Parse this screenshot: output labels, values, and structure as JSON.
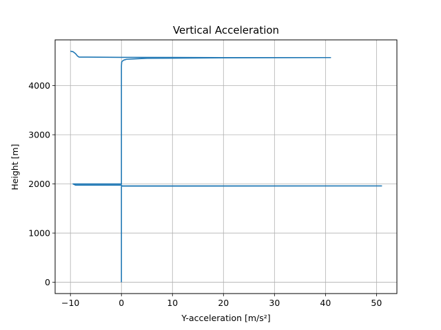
{
  "chart_data": {
    "type": "line",
    "title": "Vertical Acceleration",
    "xlabel": "Y-acceleration [m/s²]",
    "ylabel": "Height [m]",
    "xlim": [
      -13,
      54
    ],
    "ylim": [
      -230,
      4930
    ],
    "xticks": [
      -10,
      0,
      10,
      20,
      30,
      40,
      50
    ],
    "yticks": [
      0,
      1000,
      2000,
      3000,
      4000
    ],
    "grid": true,
    "color": "#1f77b4",
    "series": [
      {
        "x": [
          -10.0,
          -9.5,
          -9.0,
          -8.6,
          -8.3,
          0.0,
          20.0,
          41.0,
          20.0,
          5.0,
          1.0,
          0.5,
          0.2,
          0.05,
          0.0,
          0.0,
          0.0,
          0.0,
          -9.5,
          -9.0,
          0.0,
          0.1,
          51.0,
          0.1,
          0.0,
          0.0,
          0.0
        ],
        "y": [
          4700,
          4690,
          4650,
          4600,
          4580,
          4575,
          4570,
          4570,
          4565,
          4555,
          4535,
          4520,
          4500,
          4480,
          4400,
          3000,
          2200,
          2000,
          2000,
          1975,
          1975,
          1960,
          1960,
          1955,
          1950,
          1000,
          0
        ]
      }
    ]
  }
}
